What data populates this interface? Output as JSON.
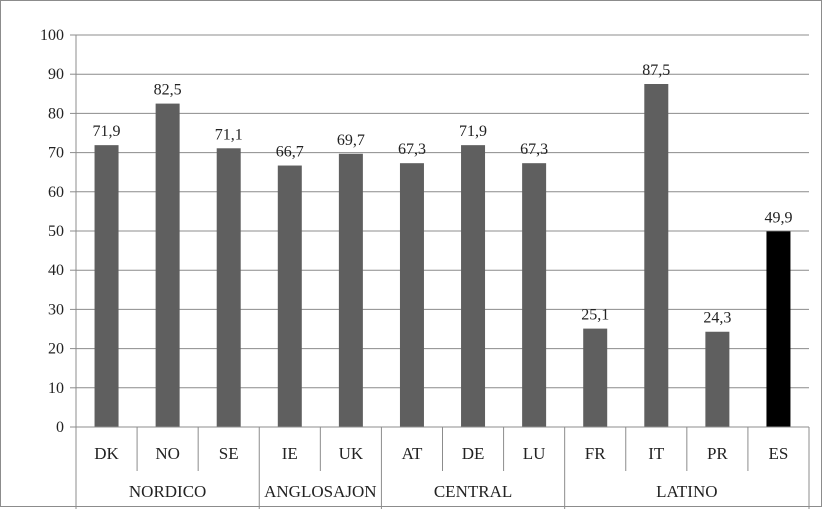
{
  "chart_data": {
    "type": "bar",
    "categories": [
      "DK",
      "NO",
      "SE",
      "IE",
      "UK",
      "AT",
      "DE",
      "LU",
      "FR",
      "IT",
      "PR",
      "ES"
    ],
    "groups": [
      {
        "label": "NORDICO",
        "categories": [
          "DK",
          "NO",
          "SE"
        ]
      },
      {
        "label": "ANGLOSAJON",
        "categories": [
          "IE",
          "UK"
        ]
      },
      {
        "label": "CENTRAL",
        "categories": [
          "AT",
          "DE",
          "LU"
        ]
      },
      {
        "label": "LATINO",
        "categories": [
          "FR",
          "IT",
          "PR",
          "ES"
        ]
      }
    ],
    "values": [
      71.9,
      82.5,
      71.1,
      66.7,
      69.7,
      67.3,
      71.9,
      67.3,
      25.1,
      87.5,
      24.3,
      49.9
    ],
    "data_labels": [
      "71,9",
      "82,5",
      "71,1",
      "66,7",
      "69,7",
      "67,3",
      "71,9",
      "67,3",
      "25,1",
      "87,5",
      "24,3",
      "49,9"
    ],
    "ylim": [
      0,
      100
    ],
    "yticks": [
      0,
      10,
      20,
      30,
      40,
      50,
      60,
      70,
      80,
      90,
      100
    ],
    "grid": true,
    "colors": {
      "default": "#5f5f5f",
      "highlight": "#000000",
      "highlight_category": "ES",
      "grid": "#8c8c8c"
    },
    "title": "",
    "xlabel": "",
    "ylabel": ""
  }
}
